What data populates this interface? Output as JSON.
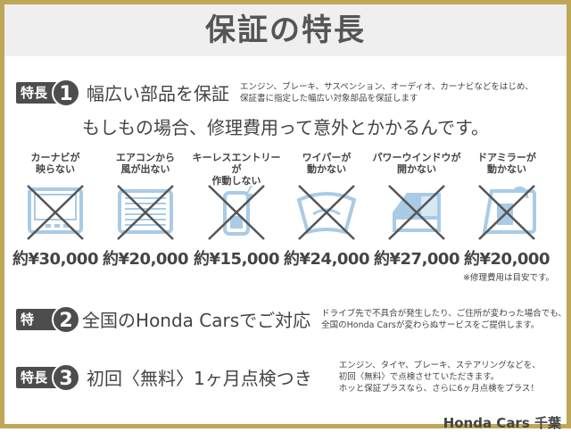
{
  "title": "保証の特長",
  "features": [
    {
      "tag": "特長",
      "num": "1",
      "head": "幅広い部品を保証",
      "desc": [
        "エンジン、ブレーキ、サスペンション、オーディオ、カーナビなどをはじめ、",
        "保証書に指定した幅広い対象部品を保証します"
      ]
    },
    {
      "tag": "特長",
      "num": "2",
      "head": "全国のHonda Carsでご対応",
      "desc": [
        "ドライブ先で不具合が発生したり、ご住所が変わった場合でも、",
        "全国のHonda Carsが変わらぬサービスをご提供します。"
      ]
    },
    {
      "tag": "特長",
      "num": "3",
      "head": "初回〈無料〉1ヶ月点検つき",
      "desc": [
        "エンジン、タイヤ、ブレーキ、ステアリングなどを、",
        "初回〈無料〉で点検させていただきます。",
        "ホッと保証プラスなら、さらに6ヶ月点検をプラス！"
      ]
    }
  ],
  "tagline": "もしもの場合、修理費用って意外とかかるんです。",
  "repairs": [
    {
      "line1": "カーナビが",
      "line2": "映らない",
      "price": "約¥30,000",
      "icon": "car-navi-icon"
    },
    {
      "line1": "エアコンから",
      "line2": "風が出ない",
      "price": "約¥20,000",
      "icon": "air-conditioner-icon"
    },
    {
      "line1": "キーレスエントリーが",
      "line2": "作動しない",
      "price": "約¥15,000",
      "icon": "keyless-remote-icon"
    },
    {
      "line1": "ワイパーが",
      "line2": "動かない",
      "price": "約¥24,000",
      "icon": "wiper-icon"
    },
    {
      "line1": "パワーウインドウが",
      "line2": "開かない",
      "price": "約¥27,000",
      "icon": "power-window-icon"
    },
    {
      "line1": "ドアミラーが",
      "line2": "動かない",
      "price": "約¥20,000",
      "icon": "door-mirror-icon"
    }
  ],
  "note": "※修理費用は目安です。",
  "footer": "Honda Cars 千葉",
  "colors": {
    "border": "#bfa75a",
    "badge": "#4d4d4d",
    "icon": "#a9cbe6",
    "cross": "#555555",
    "title_band": "#efefef"
  }
}
